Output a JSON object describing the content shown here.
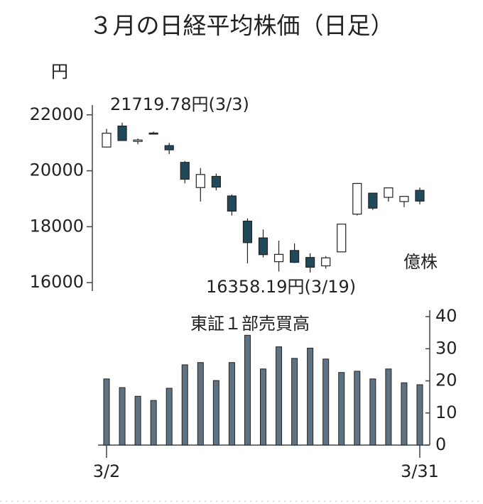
{
  "title": "３月の日経平均株価（日足）",
  "chart_data": [
    {
      "type": "candlestick",
      "unit": "円",
      "open": [
        20849,
        21600,
        21050,
        21350,
        20900,
        20300,
        19400,
        19800,
        19100,
        18200,
        17600,
        16750,
        17150,
        16900,
        16600,
        17100,
        18450,
        19200,
        19050,
        18900,
        19300
      ],
      "high": [
        21500,
        21719.78,
        21150,
        21400,
        21000,
        20350,
        20100,
        19900,
        19150,
        18300,
        17900,
        17500,
        17400,
        17050,
        16950,
        18100,
        19564,
        19200,
        19400,
        19100,
        19400
      ],
      "low": [
        20834,
        21082,
        20950,
        21300,
        20600,
        19550,
        18900,
        19300,
        18400,
        16690,
        16900,
        16400,
        16700,
        16358.19,
        16500,
        17100,
        18400,
        18600,
        18900,
        18700,
        18800
      ],
      "close": [
        21344,
        21082,
        21100,
        21329,
        20749,
        19698,
        19867,
        19416,
        18559,
        17431,
        17002,
        17011,
        16726,
        16552,
        16887,
        18092,
        19546,
        18664,
        19389,
        19084,
        18917
      ],
      "up_color": "#ffffff",
      "down_color": "#1f4a5c",
      "ylim": [
        15700,
        22350
      ],
      "yticks": [
        16000,
        18000,
        20000,
        22000
      ],
      "annotations": [
        "21719.78円(3/3)",
        "16358.19円(3/19)"
      ]
    },
    {
      "type": "bar",
      "title": "東証１部売買高",
      "unit": "億株",
      "categories": [
        "3/2",
        null,
        null,
        null,
        null,
        null,
        null,
        null,
        null,
        null,
        null,
        null,
        null,
        null,
        null,
        null,
        null,
        null,
        null,
        null,
        "3/31"
      ],
      "values": [
        20.6,
        17.9,
        15.2,
        13.9,
        17.7,
        25,
        25.7,
        20.1,
        25.7,
        34.2,
        23.7,
        30.6,
        27,
        30.2,
        26.8,
        22.6,
        23,
        20.6,
        23.7,
        19.4,
        18.8
      ],
      "color": "#5d7282",
      "ylim": [
        0,
        42
      ],
      "yticks": [
        0,
        10,
        20,
        30,
        40
      ]
    }
  ]
}
